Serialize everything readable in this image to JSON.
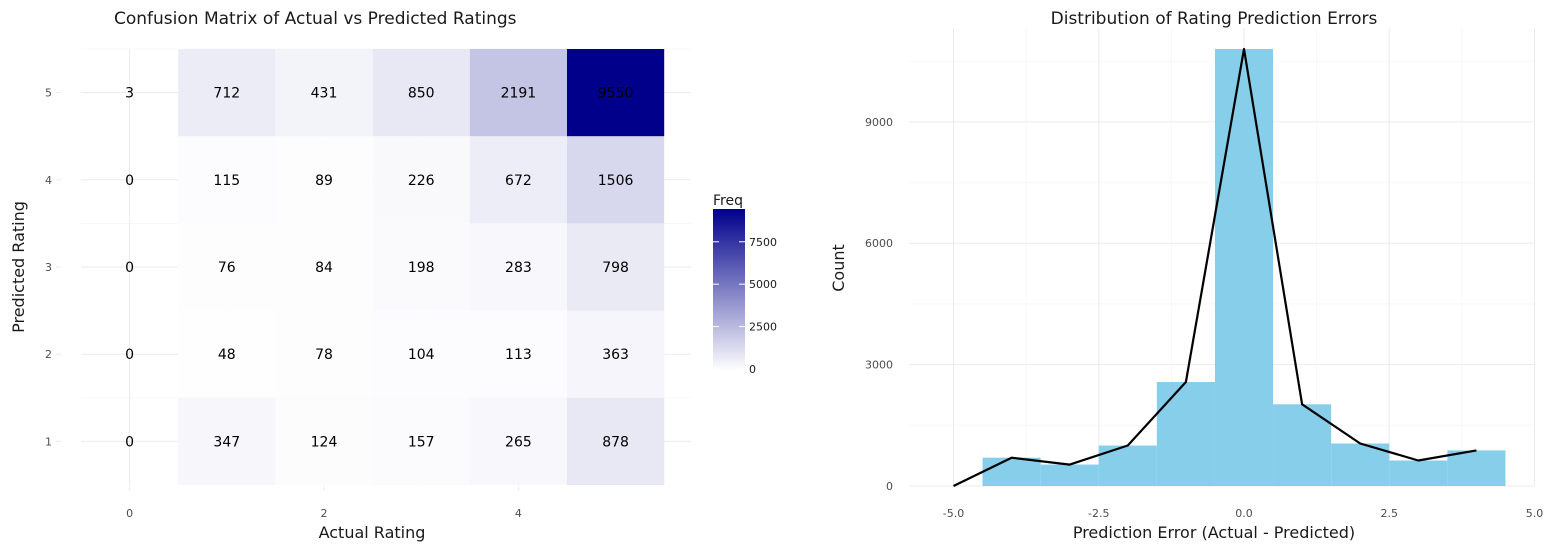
{
  "colors": {
    "grid": "#ebebeb",
    "heat_low": "#ffffff",
    "heat_high": "#00008b",
    "hist_fill": "#87ceeb",
    "line": "#000000",
    "legend_tick": "#ffffff"
  },
  "chart_data": [
    {
      "type": "heatmap",
      "title": "Confusion Matrix of Actual vs Predicted Ratings",
      "xlabel": "Actual Rating",
      "ylabel": "Predicted Rating",
      "x_categories": [
        0,
        1,
        2,
        3,
        4,
        5
      ],
      "y_categories": [
        1,
        2,
        3,
        4,
        5
      ],
      "x_ticks": [
        "0",
        "2",
        "4"
      ],
      "y_ticks": [
        "1",
        "2",
        "3",
        "4",
        "5"
      ],
      "fill_max": 9550,
      "legend": {
        "title": "Freq",
        "ticks": [
          "0",
          "2500",
          "5000",
          "7500"
        ],
        "tick_values": [
          0,
          2500,
          5000,
          7500
        ],
        "position": "right"
      },
      "values": [
        [
          0,
          347,
          124,
          157,
          265,
          878
        ],
        [
          0,
          48,
          78,
          104,
          113,
          363
        ],
        [
          0,
          76,
          84,
          198,
          283,
          798
        ],
        [
          0,
          115,
          89,
          226,
          672,
          1506
        ],
        [
          3,
          712,
          431,
          850,
          2191,
          9550
        ]
      ],
      "x_range": [
        -0.5,
        5.5
      ],
      "y_range": [
        0.5,
        5.5
      ]
    },
    {
      "type": "bar",
      "subtype": "histogram-with-frequency-polygon",
      "title": "Distribution of Rating Prediction Errors",
      "xlabel": "Prediction Error (Actual - Predicted)",
      "ylabel": "Count",
      "x_ticks": [
        "-5.0",
        "-2.5",
        "0.0",
        "2.5",
        "5.0"
      ],
      "x_tick_values": [
        -5,
        -2.5,
        0,
        2.5,
        5
      ],
      "y_ticks": [
        "0",
        "3000",
        "6000",
        "9000"
      ],
      "y_tick_values": [
        0,
        3000,
        6000,
        9000
      ],
      "xlim": [
        -5.5,
        5.0
      ],
      "ylim": [
        0,
        10800
      ],
      "bins": [
        {
          "x0": -4.5,
          "x1": -3.5,
          "count": 700
        },
        {
          "x0": -3.5,
          "x1": -2.5,
          "count": 530
        },
        {
          "x0": -2.5,
          "x1": -1.5,
          "count": 1000
        },
        {
          "x0": -1.5,
          "x1": -0.5,
          "count": 2570
        },
        {
          "x0": -0.5,
          "x1": 0.5,
          "count": 10800
        },
        {
          "x0": 0.5,
          "x1": 1.5,
          "count": 2020
        },
        {
          "x0": 1.5,
          "x1": 2.5,
          "count": 1050
        },
        {
          "x0": 2.5,
          "x1": 3.5,
          "count": 630
        },
        {
          "x0": 3.5,
          "x1": 4.5,
          "count": 880
        }
      ],
      "line_points": [
        {
          "x": -5,
          "y": 0
        },
        {
          "x": -4,
          "y": 700
        },
        {
          "x": -3,
          "y": 530
        },
        {
          "x": -2,
          "y": 1000
        },
        {
          "x": -1,
          "y": 2570
        },
        {
          "x": 0,
          "y": 10800
        },
        {
          "x": 1,
          "y": 2020
        },
        {
          "x": 2,
          "y": 1050
        },
        {
          "x": 3,
          "y": 630
        },
        {
          "x": 4,
          "y": 880
        }
      ]
    }
  ]
}
